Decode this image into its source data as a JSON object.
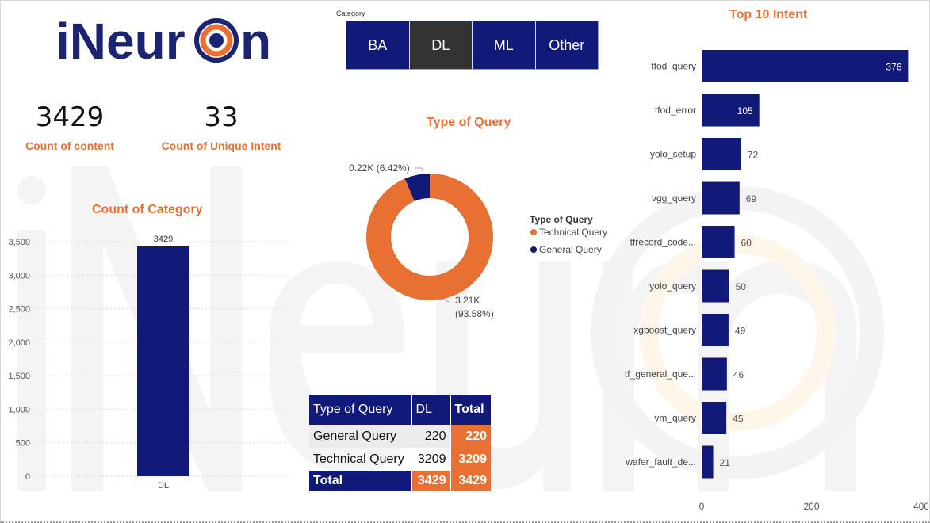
{
  "logo": {
    "text": "iNeuron"
  },
  "kpis": [
    {
      "value": "3429",
      "label": "Count of content"
    },
    {
      "value": "33",
      "label": "Count of Unique  Intent"
    }
  ],
  "slicer": {
    "title": "Category",
    "options": [
      "BA",
      "DL",
      "ML",
      "Other"
    ],
    "selected": "DL"
  },
  "colors": {
    "navy": "#111a78",
    "orange": "#e87033",
    "selected": "#333333"
  },
  "chart_data": [
    {
      "type": "bar",
      "title": "Count of Category",
      "categories": [
        "DL"
      ],
      "values": [
        3429
      ],
      "data_labels": [
        "3429"
      ],
      "yticks": [
        0,
        500,
        1000,
        1500,
        2000,
        2500,
        3000,
        3500
      ],
      "ytick_labels": [
        "0",
        "500",
        "1,000",
        "1,500",
        "2,000",
        "2,500",
        "3,000",
        "3,500"
      ],
      "ylim": [
        0,
        3500
      ],
      "grid": true,
      "color": "#111a78"
    },
    {
      "type": "pie",
      "donut": true,
      "title": "Type of Query",
      "legend_title": "Type of Query",
      "legend_position": "right",
      "slices": [
        {
          "name": "Technical Query",
          "value": 3209,
          "label": "3.21K",
          "pct_label": "(93.58%)",
          "color": "#e87033"
        },
        {
          "name": "General Query",
          "value": 220,
          "label": "0.22K (6.42%)",
          "color": "#111a78"
        }
      ]
    },
    {
      "type": "bar",
      "orientation": "horizontal",
      "title": "Top 10 Intent",
      "categories": [
        "tfod_query",
        "tfod_error",
        "yolo_setup",
        "vgg_query",
        "tfrecord_code...",
        "yolo_query",
        "xgboost_query",
        "tf_general_que...",
        "vm_query",
        "wafer_fault_de..."
      ],
      "values": [
        376,
        105,
        72,
        69,
        60,
        50,
        49,
        46,
        45,
        21
      ],
      "xticks": [
        0,
        200,
        400
      ],
      "xtick_labels": [
        "0",
        "200",
        "400"
      ],
      "xlim": [
        0,
        400
      ],
      "color": "#111a78"
    },
    {
      "type": "table",
      "columns": [
        "Type of Query",
        "DL",
        "Total"
      ],
      "rows": [
        {
          "label": "General Query",
          "dl": "220",
          "total": "220"
        },
        {
          "label": "Technical Query",
          "dl": "3209",
          "total": "3209"
        }
      ],
      "footer": {
        "label": "Total",
        "dl": "3429",
        "total": "3429"
      }
    }
  ]
}
